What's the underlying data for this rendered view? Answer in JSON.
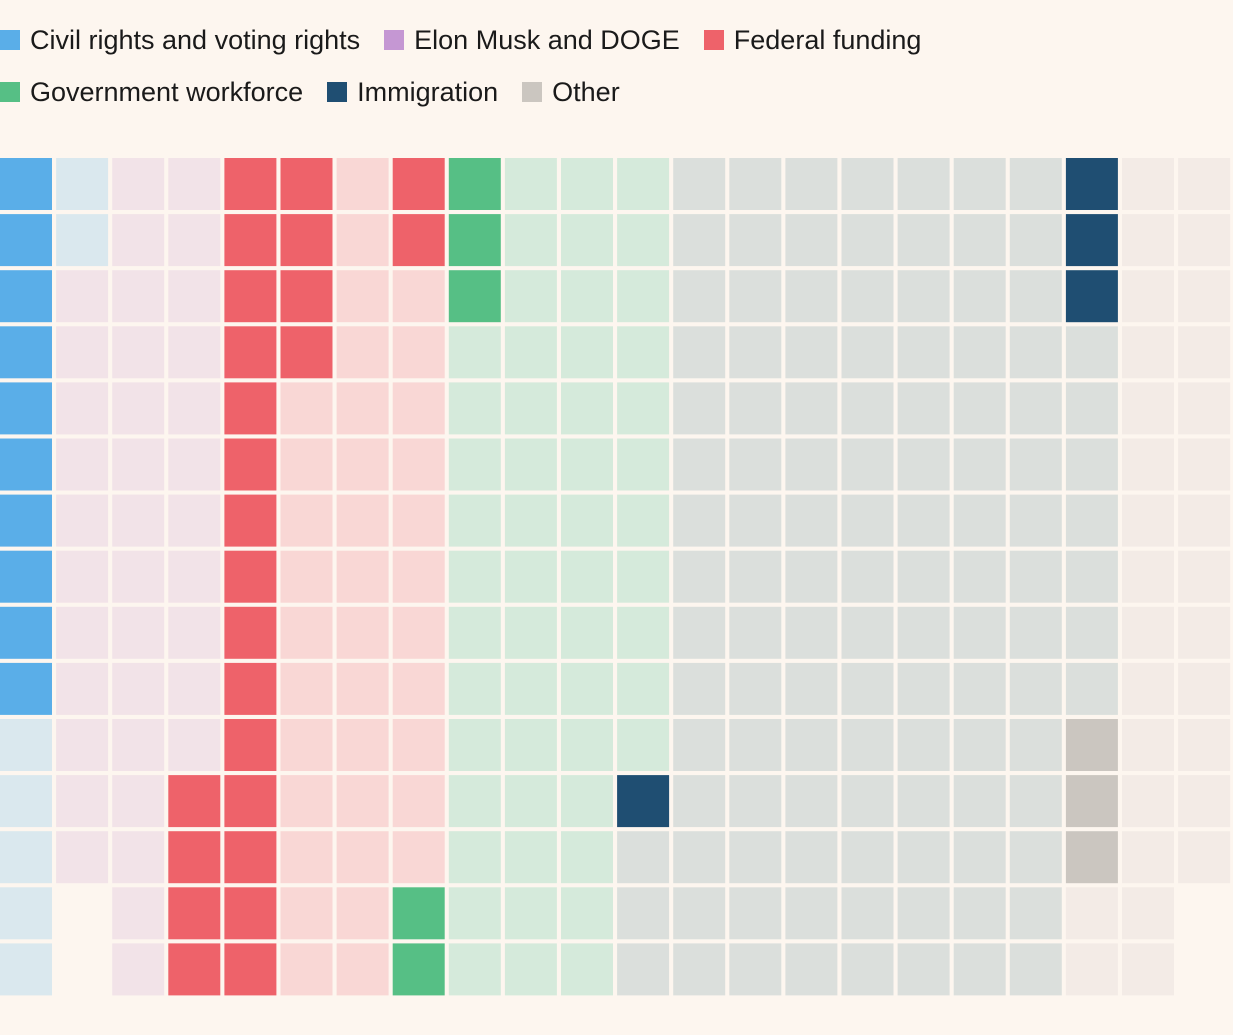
{
  "chart_data": {
    "type": "waffle",
    "title": "",
    "legend_position": "top-left",
    "legend": [
      {
        "key": "civil",
        "label": "Civil rights and voting rights",
        "color": "#5aaee8"
      },
      {
        "key": "doge",
        "label": "Elon Musk and DOGE",
        "color": "#c597d3"
      },
      {
        "key": "funding",
        "label": "Federal funding",
        "color": "#ee626a"
      },
      {
        "key": "workforce",
        "label": "Government workforce",
        "color": "#56bf85"
      },
      {
        "key": "immigration",
        "label": "Immigration",
        "color": "#1f4e72"
      },
      {
        "key": "other",
        "label": "Other",
        "color": "#cbc6c0"
      }
    ],
    "faded_colors": {
      "civil": "#dae8ee",
      "doge": "#f2e3e8",
      "funding": "#f9d7d5",
      "workforce": "#d5eadb",
      "immigration": "#dbdfdc",
      "other": "#f3ebe6"
    },
    "columns": [
      {
        "category": "civil",
        "highlighted": 10,
        "total": 15
      },
      {
        "category": "doge",
        "highlighted": 0,
        "total": 13
      },
      {
        "category": "doge",
        "highlighted": 0,
        "total": 15
      },
      {
        "category": "doge",
        "highlighted": 0,
        "total": 15
      },
      {
        "category": "funding",
        "highlighted": 15,
        "total": 15
      },
      {
        "category": "funding",
        "highlighted": 4,
        "total": 15
      },
      {
        "category": "funding",
        "highlighted": 0,
        "total": 15
      },
      {
        "category": "funding",
        "highlighted": 2,
        "total": 15
      },
      {
        "category": "workforce",
        "highlighted": 3,
        "total": 15
      },
      {
        "category": "workforce",
        "highlighted": 0,
        "total": 15
      },
      {
        "category": "workforce",
        "highlighted": 0,
        "total": 15
      },
      {
        "category": "workforce",
        "highlighted": 0,
        "total": 15
      },
      {
        "category": "immigration",
        "highlighted": 0,
        "total": 15
      },
      {
        "category": "immigration",
        "highlighted": 0,
        "total": 15
      },
      {
        "category": "immigration",
        "highlighted": 0,
        "total": 15
      },
      {
        "category": "immigration",
        "highlighted": 0,
        "total": 15
      },
      {
        "category": "immigration",
        "highlighted": 0,
        "total": 15
      },
      {
        "category": "immigration",
        "highlighted": 0,
        "total": 15
      },
      {
        "category": "immigration",
        "highlighted": 0,
        "total": 15
      },
      {
        "category": "immigration",
        "highlighted": 3,
        "total": 15
      },
      {
        "category": "other",
        "highlighted": 0,
        "total": 15
      },
      {
        "category": "other",
        "highlighted": 0,
        "total": 13
      }
    ],
    "cell_overrides": [
      {
        "column": 1,
        "row": 0,
        "category": "civil",
        "highlighted": false
      },
      {
        "column": 1,
        "row": 1,
        "category": "civil",
        "highlighted": false
      },
      {
        "column": 3,
        "row": 11,
        "category": "funding",
        "highlighted": true
      },
      {
        "column": 3,
        "row": 12,
        "category": "funding",
        "highlighted": true
      },
      {
        "column": 3,
        "row": 13,
        "category": "funding",
        "highlighted": true
      },
      {
        "column": 3,
        "row": 14,
        "category": "funding",
        "highlighted": true
      },
      {
        "column": 7,
        "row": 13,
        "category": "workforce",
        "highlighted": true
      },
      {
        "column": 7,
        "row": 14,
        "category": "workforce",
        "highlighted": true
      },
      {
        "column": 11,
        "row": 11,
        "category": "immigration",
        "highlighted": true
      },
      {
        "column": 11,
        "row": 12,
        "category": "immigration",
        "highlighted": false
      },
      {
        "column": 11,
        "row": 13,
        "category": "immigration",
        "highlighted": false
      },
      {
        "column": 11,
        "row": 14,
        "category": "immigration",
        "highlighted": false
      },
      {
        "column": 19,
        "row": 10,
        "category": "other",
        "highlighted": true
      },
      {
        "column": 19,
        "row": 11,
        "category": "other",
        "highlighted": true
      },
      {
        "column": 19,
        "row": 12,
        "category": "other",
        "highlighted": true
      },
      {
        "column": 19,
        "row": 13,
        "category": "other",
        "highlighted": false
      },
      {
        "column": 19,
        "row": 14,
        "category": "other",
        "highlighted": false
      }
    ]
  }
}
